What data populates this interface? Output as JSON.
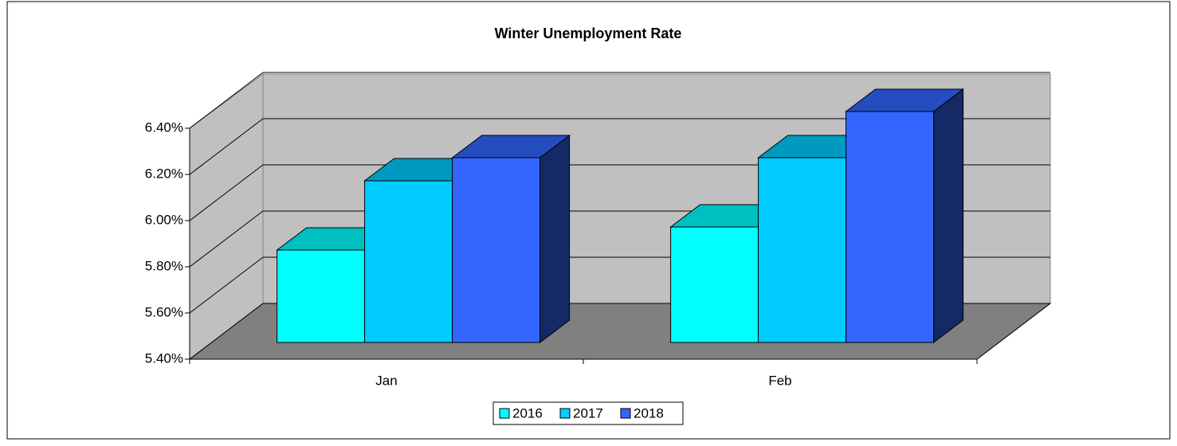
{
  "chart_data": {
    "type": "bar3d",
    "title": "Winter Unemployment Rate",
    "categories": [
      "Jan",
      "Feb"
    ],
    "series": [
      {
        "name": "2016",
        "color": "#00ffff",
        "values": [
          5.8,
          5.9
        ]
      },
      {
        "name": "2017",
        "color": "#00ccff",
        "values": [
          6.1,
          6.2
        ]
      },
      {
        "name": "2018",
        "color": "#3366ff",
        "values": [
          6.2,
          6.4
        ]
      }
    ],
    "ylim": [
      5.4,
      6.4
    ],
    "yticks": [
      {
        "value": 5.4,
        "label": "5.40%"
      },
      {
        "value": 5.6,
        "label": "5.60%"
      },
      {
        "value": 5.8,
        "label": "5.80%"
      },
      {
        "value": 6.0,
        "label": "6.00%"
      },
      {
        "value": 6.2,
        "label": "6.20%"
      },
      {
        "value": 6.4,
        "label": "6.40%"
      }
    ],
    "grid": true,
    "legend": "bottom"
  }
}
